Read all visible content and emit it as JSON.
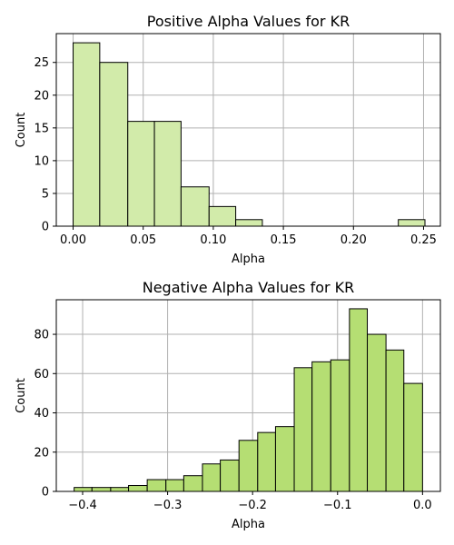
{
  "chart_data": [
    {
      "type": "bar",
      "title": "Positive Alpha Values for KR",
      "xlabel": "Alpha",
      "ylabel": "Count",
      "xlim": [
        -0.012,
        0.262
      ],
      "ylim": [
        0,
        29.4
      ],
      "xticks": [
        0.0,
        0.05,
        0.1,
        0.15,
        0.2,
        0.25
      ],
      "xtick_labels": [
        "0.00",
        "0.05",
        "0.10",
        "0.15",
        "0.20",
        "0.25"
      ],
      "yticks": [
        0,
        5,
        10,
        15,
        20,
        25
      ],
      "ytick_labels": [
        "0",
        "5",
        "10",
        "15",
        "20",
        "25"
      ],
      "grid": true,
      "bar_color": "#d2ebaa",
      "bins": [
        {
          "x0": 0.0,
          "x1": 0.019,
          "count": 28
        },
        {
          "x0": 0.019,
          "x1": 0.039,
          "count": 25
        },
        {
          "x0": 0.039,
          "x1": 0.058,
          "count": 16
        },
        {
          "x0": 0.058,
          "x1": 0.077,
          "count": 16
        },
        {
          "x0": 0.077,
          "x1": 0.097,
          "count": 6
        },
        {
          "x0": 0.097,
          "x1": 0.116,
          "count": 3
        },
        {
          "x0": 0.116,
          "x1": 0.135,
          "count": 1
        },
        {
          "x0": 0.232,
          "x1": 0.251,
          "count": 1
        }
      ]
    },
    {
      "type": "bar",
      "title": "Negative Alpha Values for KR",
      "xlabel": "Alpha",
      "ylabel": "Count",
      "xlim": [
        -0.431,
        0.021
      ],
      "ylim": [
        0,
        97.6
      ],
      "xticks": [
        -0.4,
        -0.3,
        -0.2,
        -0.1,
        0.0
      ],
      "xtick_labels": [
        "−0.4",
        "−0.3",
        "−0.2",
        "−0.1",
        "0.0"
      ],
      "yticks": [
        0,
        20,
        40,
        60,
        80
      ],
      "ytick_labels": [
        "0",
        "20",
        "40",
        "60",
        "80"
      ],
      "grid": true,
      "bar_color": "#b5de73",
      "bins": [
        {
          "x0": -0.41,
          "x1": -0.389,
          "count": 2
        },
        {
          "x0": -0.389,
          "x1": -0.367,
          "count": 2
        },
        {
          "x0": -0.367,
          "x1": -0.346,
          "count": 2
        },
        {
          "x0": -0.346,
          "x1": -0.324,
          "count": 3
        },
        {
          "x0": -0.324,
          "x1": -0.302,
          "count": 6
        },
        {
          "x0": -0.302,
          "x1": -0.281,
          "count": 6
        },
        {
          "x0": -0.281,
          "x1": -0.259,
          "count": 8
        },
        {
          "x0": -0.259,
          "x1": -0.238,
          "count": 14
        },
        {
          "x0": -0.238,
          "x1": -0.216,
          "count": 16
        },
        {
          "x0": -0.216,
          "x1": -0.194,
          "count": 26
        },
        {
          "x0": -0.194,
          "x1": -0.173,
          "count": 30
        },
        {
          "x0": -0.173,
          "x1": -0.151,
          "count": 33
        },
        {
          "x0": -0.151,
          "x1": -0.13,
          "count": 63
        },
        {
          "x0": -0.13,
          "x1": -0.108,
          "count": 66
        },
        {
          "x0": -0.108,
          "x1": -0.086,
          "count": 67
        },
        {
          "x0": -0.086,
          "x1": -0.065,
          "count": 93
        },
        {
          "x0": -0.065,
          "x1": -0.043,
          "count": 80
        },
        {
          "x0": -0.043,
          "x1": -0.022,
          "count": 72
        },
        {
          "x0": -0.022,
          "x1": 0.0,
          "count": 55
        }
      ]
    }
  ]
}
